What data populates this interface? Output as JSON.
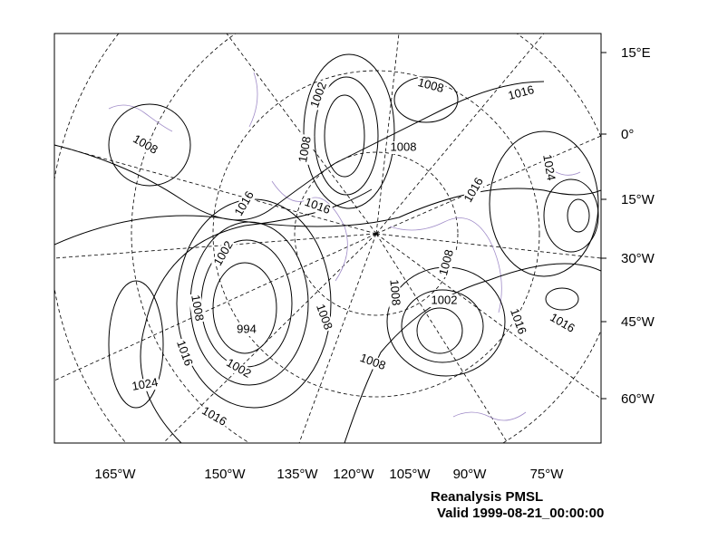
{
  "map": {
    "lat_labels": [
      "15°E",
      "0°",
      "15°W",
      "30°W",
      "45°W",
      "60°W"
    ],
    "lon_labels": [
      "165°W",
      "150°W",
      "135°W",
      "120°W",
      "105°W",
      "90°W",
      "75°W"
    ],
    "contour_labels": [
      "1002",
      "1008",
      "1016",
      "1008",
      "1008",
      "1008",
      "1024",
      "1016",
      "1016",
      "1016",
      "1002",
      "1008",
      "1008",
      "1008",
      "1002",
      "1008",
      "994",
      "1016",
      "1016",
      "1016",
      "1002",
      "1008",
      "1024",
      "1016"
    ],
    "caption": [
      "Reanalysis PMSL",
      "Valid 1999-08-21_00:00:00"
    ]
  }
}
